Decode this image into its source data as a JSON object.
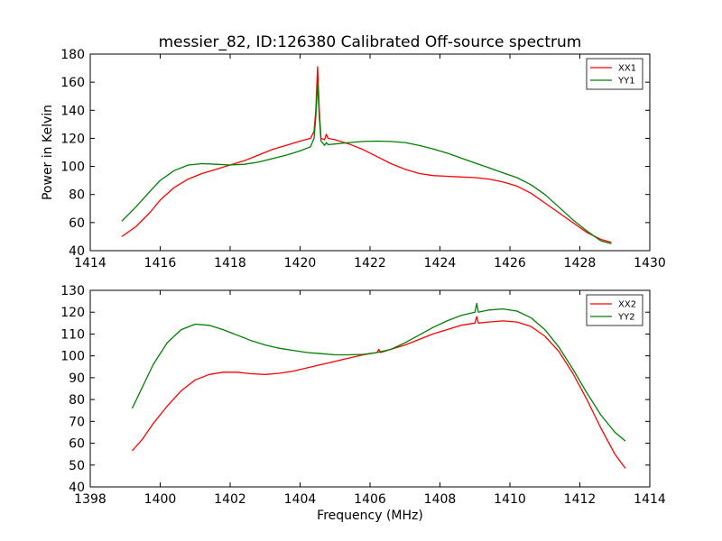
{
  "title": "messier_82, ID:126380 Calibrated Off-source spectrum",
  "chart_data": [
    {
      "type": "line",
      "ylabel": "Power in Kelvin",
      "xlabel": "",
      "xlim": [
        1414,
        1430
      ],
      "ylim": [
        40,
        180
      ],
      "xticks": [
        1414,
        1416,
        1418,
        1420,
        1422,
        1424,
        1426,
        1428,
        1430
      ],
      "yticks": [
        40,
        60,
        80,
        100,
        120,
        140,
        160,
        180
      ],
      "legend_position": "top-right",
      "series": [
        {
          "name": "XX1",
          "color": "#ff0000",
          "x": [
            1414.9,
            1415.3,
            1415.7,
            1416.0,
            1416.4,
            1416.8,
            1417.2,
            1417.6,
            1418.0,
            1418.4,
            1418.8,
            1419.2,
            1419.6,
            1420.0,
            1420.3,
            1420.4,
            1420.45,
            1420.5,
            1420.55,
            1420.6,
            1420.7,
            1420.75,
            1420.8,
            1421.0,
            1421.4,
            1421.8,
            1422.2,
            1422.6,
            1423.0,
            1423.4,
            1423.8,
            1424.2,
            1424.6,
            1425.0,
            1425.4,
            1425.8,
            1426.2,
            1426.6,
            1427.0,
            1427.4,
            1427.8,
            1428.2,
            1428.6,
            1428.9
          ],
          "y": [
            50,
            57,
            67,
            76,
            85,
            91,
            95,
            98,
            101,
            104,
            108,
            112,
            115,
            118,
            120,
            125,
            140,
            171,
            140,
            120,
            119,
            123,
            120,
            119,
            116,
            112,
            107,
            102,
            98,
            95,
            93.5,
            93,
            92.5,
            92,
            91,
            89,
            86,
            81,
            74,
            67,
            60,
            53,
            48,
            46
          ]
        },
        {
          "name": "YY1",
          "color": "#007f00",
          "x": [
            1414.9,
            1415.3,
            1415.7,
            1416.0,
            1416.4,
            1416.8,
            1417.2,
            1417.6,
            1418.0,
            1418.4,
            1418.8,
            1419.2,
            1419.6,
            1420.0,
            1420.3,
            1420.4,
            1420.45,
            1420.5,
            1420.55,
            1420.6,
            1420.7,
            1420.75,
            1420.8,
            1421.0,
            1421.4,
            1421.8,
            1422.2,
            1422.6,
            1423.0,
            1423.4,
            1423.8,
            1424.2,
            1424.6,
            1425.0,
            1425.4,
            1425.8,
            1426.2,
            1426.6,
            1427.0,
            1427.4,
            1427.8,
            1428.2,
            1428.6,
            1428.9
          ],
          "y": [
            61,
            71,
            82,
            90,
            97,
            101,
            102,
            101.5,
            101,
            101.5,
            103,
            105.5,
            108,
            111,
            114,
            120,
            135,
            160,
            135,
            118,
            115,
            117,
            115.5,
            116,
            117,
            117.8,
            118,
            117.8,
            117,
            115,
            112.5,
            109.5,
            106,
            102.5,
            99,
            95.5,
            92,
            87,
            80,
            71,
            62,
            54,
            47,
            45
          ]
        }
      ]
    },
    {
      "type": "line",
      "ylabel": "",
      "xlabel": "Frequency (MHz)",
      "xlim": [
        1398,
        1414
      ],
      "ylim": [
        40,
        130
      ],
      "xticks": [
        1398,
        1400,
        1402,
        1404,
        1406,
        1408,
        1410,
        1412,
        1414
      ],
      "yticks": [
        40,
        50,
        60,
        70,
        80,
        90,
        100,
        110,
        120,
        130
      ],
      "legend_position": "top-right",
      "series": [
        {
          "name": "XX2",
          "color": "#ff0000",
          "x": [
            1399.2,
            1399.5,
            1399.8,
            1400.2,
            1400.6,
            1401.0,
            1401.4,
            1401.8,
            1402.2,
            1402.6,
            1403.0,
            1403.4,
            1403.8,
            1404.2,
            1404.6,
            1405.0,
            1405.4,
            1405.8,
            1406.2,
            1406.25,
            1406.3,
            1406.6,
            1407.0,
            1407.4,
            1407.8,
            1408.2,
            1408.6,
            1409.0,
            1409.05,
            1409.1,
            1409.4,
            1409.8,
            1410.2,
            1410.6,
            1411.0,
            1411.4,
            1411.8,
            1412.2,
            1412.6,
            1413.0,
            1413.3
          ],
          "y": [
            56.5,
            62,
            69,
            77,
            84,
            89,
            91.5,
            92.5,
            92.5,
            91.8,
            91.5,
            92,
            93,
            94.5,
            96,
            97.5,
            99,
            100.5,
            101.5,
            103,
            101.5,
            103,
            105,
            107.5,
            110,
            112,
            114,
            115,
            118,
            115,
            115.5,
            116,
            115.5,
            113.5,
            109,
            102,
            92,
            80,
            67,
            55,
            48.5
          ]
        },
        {
          "name": "YY2",
          "color": "#007f00",
          "x": [
            1399.2,
            1399.5,
            1399.8,
            1400.2,
            1400.6,
            1401.0,
            1401.4,
            1401.8,
            1402.2,
            1402.6,
            1403.0,
            1403.4,
            1403.8,
            1404.2,
            1404.6,
            1405.0,
            1405.4,
            1405.8,
            1406.2,
            1406.6,
            1407.0,
            1407.4,
            1407.8,
            1408.2,
            1408.6,
            1409.0,
            1409.05,
            1409.1,
            1409.4,
            1409.8,
            1410.2,
            1410.6,
            1411.0,
            1411.4,
            1411.8,
            1412.2,
            1412.6,
            1413.0,
            1413.3
          ],
          "y": [
            76,
            86,
            96,
            106,
            112,
            114.5,
            114,
            112,
            109.5,
            107,
            105,
            103.5,
            102.5,
            101.5,
            101,
            100.5,
            100.5,
            100.7,
            101.5,
            103,
            106,
            109.5,
            113,
            116,
            118.5,
            120,
            124,
            120,
            121,
            121.5,
            120.5,
            117.5,
            112,
            104,
            94,
            83,
            73,
            65,
            61
          ]
        }
      ]
    }
  ]
}
